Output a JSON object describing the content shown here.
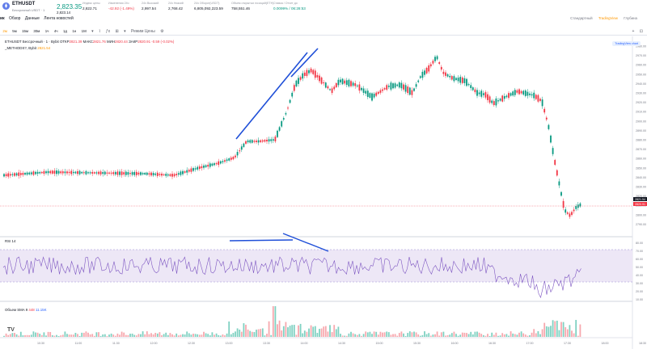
{
  "header": {
    "symbol": "ETHUSDT",
    "symbol_sub": "Бессрочный USDT · 1",
    "last_price": "2,823.35",
    "last_price_sub": "2,823.14",
    "stats": [
      {
        "label": "Индекс цены",
        "value": "2,822.71",
        "cls": ""
      },
      {
        "label": "Изменения 24ч",
        "value": "-42.92 (-1.49%)",
        "cls": "neg"
      },
      {
        "label": "24ч Высокий",
        "value": "2,997.54",
        "cls": ""
      },
      {
        "label": "24ч Низкий",
        "value": "2,768.42",
        "cls": ""
      },
      {
        "label": "24ч Оборот(USDT)",
        "value": "6,805,092,223.59",
        "cls": ""
      },
      {
        "label": "Объем открытых позиций(ETH)",
        "value": "758,551.46",
        "cls": ""
      },
      {
        "label": "Ставка / Отчет до",
        "value": "0.0099% / 06:28:53",
        "cls": "pos"
      }
    ],
    "view_links": [
      "Стандартный",
      "TradingView",
      "Глубина"
    ],
    "active_view": "TradingView"
  },
  "tabs": [
    "ик",
    "Обзор",
    "Данные",
    "Лента новостей"
  ],
  "toolbar": {
    "timeframes": [
      "2м",
      "5м",
      "15м",
      "30м",
      "1ч",
      "4ч",
      "1д",
      "1н",
      "1М"
    ],
    "active_timeframe": "2м",
    "tools": [
      "▾",
      "⌇",
      "ƒx",
      "⊞",
      "▾",
      "Режим Цены",
      "⚙"
    ],
    "right_tools": [
      "+",
      "⊡"
    ]
  },
  "legend": {
    "title": "ETHUSDT Бессрочный · 1 · Bybit",
    "o_label": "ОТКР",
    "o": "2821.39",
    "h_label": "МАКС",
    "h": "2821.76",
    "l_label": "МИН",
    "l": "2820.44",
    "c_label": "ЗАКР",
    "c": "2820.91",
    "chg": "-0.59 (-0.02%)",
    "ma_label": "_METHODS?, Bybit",
    "ma_value": "2821.54",
    "tv_button": "TradingView chart"
  },
  "price_axis": [
    "2980.00",
    "2970.00",
    "2960.00",
    "2950.00",
    "2940.00",
    "2930.00",
    "2920.00",
    "2910.00",
    "2900.00",
    "2890.00",
    "2880.00",
    "2870.00",
    "2860.00",
    "2850.00",
    "2840.00",
    "2830.00",
    "2820.00",
    "2810.00",
    "2800.00",
    "2790.00"
  ],
  "price_tags": {
    "current": "2820.91",
    "ma": "2821.54"
  },
  "rsi": {
    "label": "RSI 14",
    "axis": [
      "80.00",
      "70.00",
      "60.00",
      "50.00",
      "40.00",
      "30.00",
      "20.00",
      "10.00"
    ]
  },
  "volume": {
    "label": "Объем SMA 9",
    "v1": "448",
    "v2": "11.15K"
  },
  "time_axis": [
    "10:30",
    "11:00",
    "11:30",
    "12:00",
    "12:30",
    "13:00",
    "13:30",
    "14:00",
    "14:30",
    "15:00",
    "15:30",
    "16:00",
    "16:30",
    "17:00",
    "17:30",
    "18:00",
    "18:30"
  ],
  "colors": {
    "up": "#089981",
    "down": "#f23645",
    "drawing": "#1f4fd8",
    "rsi": "#7e57c2",
    "rsi_band": "#ede7f6"
  }
}
